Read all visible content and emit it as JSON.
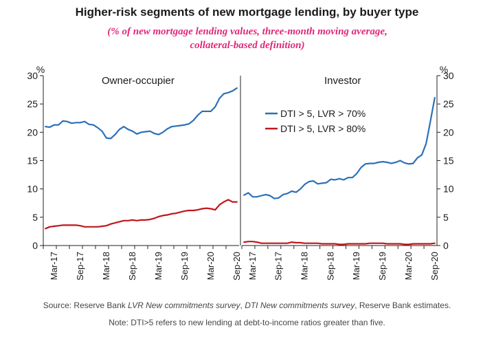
{
  "title": "Higher-risk segments of new mortgage lending, by buyer type",
  "subtitle": "(% of new mortgage lending values, three-month moving average, collateral-based definition)",
  "source": {
    "prefix": "Source: Reserve Bank ",
    "survey1": "LVR New commitments survey",
    "sep": ", ",
    "survey2": "DTI New commitments survey",
    "suffix": ", Reserve Bank estimates."
  },
  "note": "Note: DTI>5 refers to new lending at debt-to-income ratios greater than five.",
  "colors": {
    "blue": "#2b71b8",
    "red": "#c0161b",
    "axis": "#222222"
  },
  "chart_data": [
    {
      "type": "line",
      "panel": "Owner-occupier",
      "ylabel": "%",
      "ylim": [
        0,
        30
      ],
      "yticks": [
        0,
        5,
        10,
        15,
        20,
        25,
        30
      ],
      "x_ticklabels": [
        "Mar-17",
        "Sep-17",
        "Mar-18",
        "Sep-18",
        "Mar-19",
        "Sep-19",
        "Mar-20",
        "Sep-20"
      ],
      "x": [
        "Jan-17",
        "Feb-17",
        "Mar-17",
        "Apr-17",
        "May-17",
        "Jun-17",
        "Jul-17",
        "Aug-17",
        "Sep-17",
        "Oct-17",
        "Nov-17",
        "Dec-17",
        "Jan-18",
        "Feb-18",
        "Mar-18",
        "Apr-18",
        "May-18",
        "Jun-18",
        "Jul-18",
        "Aug-18",
        "Sep-18",
        "Oct-18",
        "Nov-18",
        "Dec-18",
        "Jan-19",
        "Feb-19",
        "Mar-19",
        "Apr-19",
        "May-19",
        "Jun-19",
        "Jul-19",
        "Aug-19",
        "Sep-19",
        "Oct-19",
        "Nov-19",
        "Dec-19",
        "Jan-20",
        "Feb-20",
        "Mar-20",
        "Apr-20",
        "May-20",
        "Jun-20",
        "Jul-20",
        "Aug-20",
        "Sep-20"
      ],
      "series": [
        {
          "name": "DTI > 5, LVR > 70%",
          "color": "#2b71b8",
          "values": [
            21.0,
            20.9,
            21.3,
            21.3,
            22.0,
            21.9,
            21.6,
            21.7,
            21.7,
            21.9,
            21.4,
            21.3,
            20.8,
            20.2,
            19.0,
            18.9,
            19.6,
            20.5,
            21.0,
            20.5,
            20.2,
            19.7,
            20.0,
            20.1,
            20.2,
            19.8,
            19.6,
            20.0,
            20.6,
            21.0,
            21.1,
            21.2,
            21.3,
            21.5,
            22.1,
            23.0,
            23.7,
            23.7,
            23.7,
            24.5,
            26.0,
            26.8,
            27.0,
            27.3,
            27.8
          ]
        },
        {
          "name": "DTI > 5, LVR > 80%",
          "color": "#c0161b",
          "values": [
            3.0,
            3.3,
            3.4,
            3.5,
            3.6,
            3.6,
            3.6,
            3.6,
            3.5,
            3.3,
            3.3,
            3.3,
            3.3,
            3.4,
            3.5,
            3.8,
            4.0,
            4.2,
            4.4,
            4.4,
            4.5,
            4.4,
            4.5,
            4.5,
            4.6,
            4.8,
            5.1,
            5.3,
            5.4,
            5.6,
            5.7,
            5.9,
            6.1,
            6.2,
            6.2,
            6.3,
            6.5,
            6.6,
            6.5,
            6.3,
            7.2,
            7.7,
            8.1,
            7.7,
            7.7
          ]
        }
      ]
    },
    {
      "type": "line",
      "panel": "Investor",
      "ylabel": "%",
      "ylim": [
        0,
        30
      ],
      "yticks": [
        0,
        5,
        10,
        15,
        20,
        25,
        30
      ],
      "x_ticklabels": [
        "Mar-17",
        "Sep-17",
        "Mar-18",
        "Sep-18",
        "Mar-19",
        "Sep-19",
        "Mar-20",
        "Sep-20"
      ],
      "legend": [
        "DTI > 5, LVR > 70%",
        "DTI > 5, LVR > 80%"
      ],
      "legend_position": "top-left",
      "x": [
        "Jan-17",
        "Feb-17",
        "Mar-17",
        "Apr-17",
        "May-17",
        "Jun-17",
        "Jul-17",
        "Aug-17",
        "Sep-17",
        "Oct-17",
        "Nov-17",
        "Dec-17",
        "Jan-18",
        "Feb-18",
        "Mar-18",
        "Apr-18",
        "May-18",
        "Jun-18",
        "Jul-18",
        "Aug-18",
        "Sep-18",
        "Oct-18",
        "Nov-18",
        "Dec-18",
        "Jan-19",
        "Feb-19",
        "Mar-19",
        "Apr-19",
        "May-19",
        "Jun-19",
        "Jul-19",
        "Aug-19",
        "Sep-19",
        "Oct-19",
        "Nov-19",
        "Dec-19",
        "Jan-20",
        "Feb-20",
        "Mar-20",
        "Apr-20",
        "May-20",
        "Jun-20",
        "Jul-20",
        "Aug-20",
        "Sep-20"
      ],
      "series": [
        {
          "name": "DTI > 5, LVR > 70%",
          "color": "#2b71b8",
          "values": [
            8.9,
            9.3,
            8.6,
            8.6,
            8.8,
            9.0,
            8.8,
            8.3,
            8.4,
            9.0,
            9.2,
            9.6,
            9.4,
            10.0,
            10.8,
            11.3,
            11.4,
            10.9,
            11.0,
            11.1,
            11.7,
            11.6,
            11.8,
            11.6,
            12.0,
            12.0,
            12.7,
            13.8,
            14.4,
            14.5,
            14.5,
            14.7,
            14.8,
            14.7,
            14.5,
            14.7,
            15.0,
            14.6,
            14.4,
            14.5,
            15.5,
            16.0,
            18.0,
            22.0,
            26.1
          ]
        },
        {
          "name": "DTI > 5, LVR > 80%",
          "color": "#c0161b",
          "values": [
            0.6,
            0.7,
            0.7,
            0.6,
            0.4,
            0.4,
            0.4,
            0.4,
            0.4,
            0.4,
            0.4,
            0.6,
            0.5,
            0.5,
            0.4,
            0.4,
            0.4,
            0.4,
            0.3,
            0.3,
            0.3,
            0.3,
            0.2,
            0.2,
            0.3,
            0.3,
            0.3,
            0.3,
            0.3,
            0.4,
            0.4,
            0.4,
            0.4,
            0.3,
            0.3,
            0.3,
            0.3,
            0.2,
            0.2,
            0.3,
            0.3,
            0.3,
            0.3,
            0.3,
            0.4
          ]
        }
      ]
    }
  ]
}
